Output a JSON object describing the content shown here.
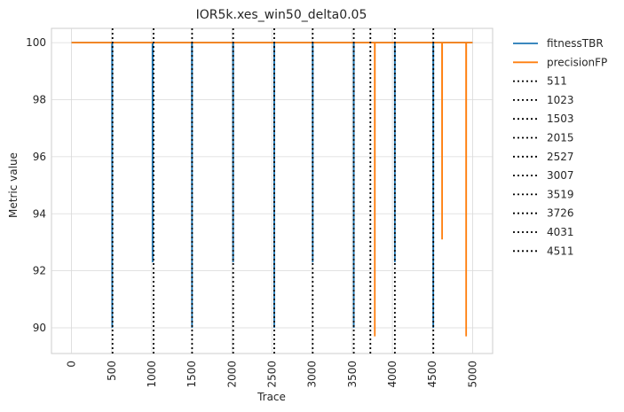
{
  "chart_data": {
    "type": "line",
    "title": "IOR5k.xes_win50_delta0.05",
    "xlabel": "Trace",
    "ylabel": "Metric value",
    "xlim": [
      -250,
      5250
    ],
    "ylim": [
      89.1,
      100.5
    ],
    "x_ticks": [
      0,
      500,
      1000,
      1500,
      2000,
      2500,
      3000,
      3500,
      4000,
      4500,
      5000
    ],
    "y_ticks": [
      90,
      92,
      94,
      96,
      98,
      100
    ],
    "grid": true,
    "legend_position": "outside-right-top",
    "series": [
      {
        "name": "fitnessTBR",
        "color": "#1f77b4",
        "points": [
          [
            0,
            100
          ],
          [
            505,
            100
          ],
          [
            507,
            90.0
          ],
          [
            508,
            100
          ],
          [
            1010,
            100
          ],
          [
            1012,
            92.3
          ],
          [
            1013,
            100
          ],
          [
            1500,
            100
          ],
          [
            1502,
            90.0
          ],
          [
            1503,
            100
          ],
          [
            2014,
            100
          ],
          [
            2015,
            92.3
          ],
          [
            2016,
            100
          ],
          [
            2526,
            100
          ],
          [
            2527,
            90.0
          ],
          [
            2528,
            100
          ],
          [
            3006,
            100
          ],
          [
            3007,
            92.3
          ],
          [
            3008,
            100
          ],
          [
            3518,
            100
          ],
          [
            3519,
            90.0
          ],
          [
            3520,
            100
          ],
          [
            4030,
            100
          ],
          [
            4031,
            92.3
          ],
          [
            4032,
            100
          ],
          [
            4509,
            100
          ],
          [
            4510,
            90.0
          ],
          [
            4511,
            100
          ],
          [
            5000,
            100
          ]
        ]
      },
      {
        "name": "precisionFP",
        "color": "#ff7f0e",
        "points": [
          [
            0,
            100
          ],
          [
            3780,
            100
          ],
          [
            3781,
            89.7
          ],
          [
            3782,
            100
          ],
          [
            4619,
            100
          ],
          [
            4620,
            93.1
          ],
          [
            4621,
            100
          ],
          [
            4919,
            100
          ],
          [
            4920,
            89.7
          ],
          [
            4921,
            100
          ],
          [
            5000,
            100
          ]
        ]
      }
    ],
    "drift_lines": {
      "color": "#000000",
      "style": "dotted",
      "names": [
        "511",
        "1023",
        "1503",
        "2015",
        "2527",
        "3007",
        "3519",
        "3726",
        "4031",
        "4511"
      ],
      "x": [
        511,
        1023,
        1503,
        2015,
        2527,
        3007,
        3519,
        3726,
        4031,
        4511
      ]
    }
  }
}
